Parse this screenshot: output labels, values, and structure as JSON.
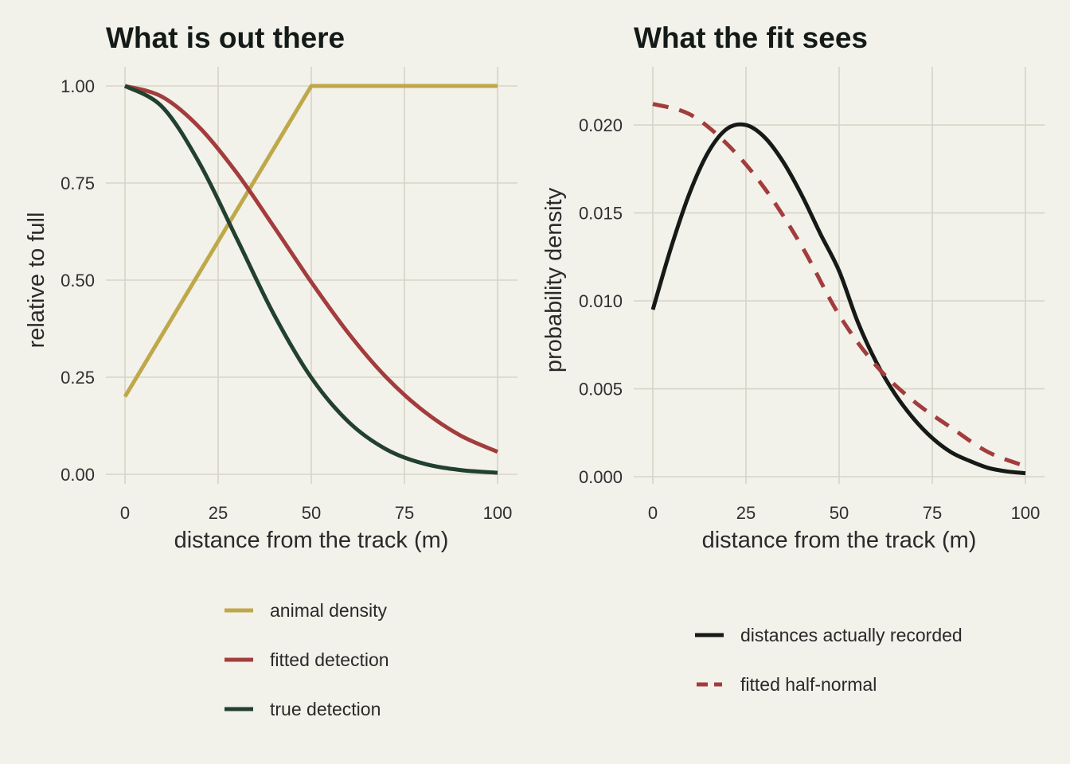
{
  "chart_data": [
    {
      "type": "line",
      "title": "What is out there",
      "xlabel": "distance from the track (m)",
      "ylabel": "relative to full",
      "xlim": [
        0,
        100
      ],
      "ylim": [
        0,
        1
      ],
      "x_ticks": [
        "0",
        "25",
        "50",
        "75",
        "100"
      ],
      "y_ticks": [
        "0.00",
        "0.25",
        "0.50",
        "0.75",
        "1.00"
      ],
      "grid": true,
      "legend_position": "bottom",
      "series": [
        {
          "name": "animal density",
          "color": "#bfa84a",
          "dash": "solid",
          "x": [
            0,
            50,
            100
          ],
          "y": [
            0.2,
            1.0,
            1.0
          ]
        },
        {
          "name": "fitted detection",
          "color": "#a33c3c",
          "dash": "solid",
          "x": [
            0,
            10,
            20,
            30,
            40,
            50,
            60,
            70,
            80,
            90,
            100
          ],
          "y": [
            1.0,
            0.972,
            0.893,
            0.776,
            0.637,
            0.495,
            0.363,
            0.251,
            0.164,
            0.1,
            0.058
          ]
        },
        {
          "name": "true detection",
          "color": "#22402f",
          "dash": "solid",
          "x": [
            0,
            10,
            20,
            30,
            40,
            50,
            60,
            70,
            80,
            90,
            100
          ],
          "y": [
            1.0,
            0.946,
            0.801,
            0.607,
            0.411,
            0.249,
            0.135,
            0.065,
            0.028,
            0.011,
            0.004
          ]
        }
      ]
    },
    {
      "type": "line",
      "title": "What the fit sees",
      "xlabel": "distance from the track (m)",
      "ylabel": "probability density",
      "xlim": [
        0,
        100
      ],
      "ylim": [
        0,
        0.021
      ],
      "x_ticks": [
        "0",
        "25",
        "50",
        "75",
        "100"
      ],
      "y_ticks": [
        "0.000",
        "0.005",
        "0.010",
        "0.015",
        "0.020"
      ],
      "grid": true,
      "legend_position": "bottom",
      "series": [
        {
          "name": "distances actually recorded",
          "color": "#161a17",
          "dash": "solid",
          "x": [
            0,
            5,
            10,
            15,
            20,
            25,
            30,
            35,
            40,
            45,
            50,
            55,
            60,
            65,
            70,
            75,
            80,
            85,
            90,
            95,
            100
          ],
          "y": [
            0.0095,
            0.0131,
            0.0162,
            0.0185,
            0.0198,
            0.02,
            0.0193,
            0.0179,
            0.016,
            0.0138,
            0.0117,
            0.0088,
            0.0065,
            0.0047,
            0.0033,
            0.0022,
            0.0014,
            0.0009,
            0.0005,
            0.0003,
            0.0002
          ]
        },
        {
          "name": "fitted half-normal",
          "color": "#a33c3c",
          "dash": "dashed",
          "x": [
            0,
            10,
            20,
            30,
            40,
            50,
            60,
            70,
            80,
            90,
            100
          ],
          "y": [
            0.0212,
            0.0206,
            0.0189,
            0.0164,
            0.0131,
            0.0092,
            0.0063,
            0.0043,
            0.0028,
            0.0014,
            0.0006
          ]
        }
      ]
    }
  ]
}
